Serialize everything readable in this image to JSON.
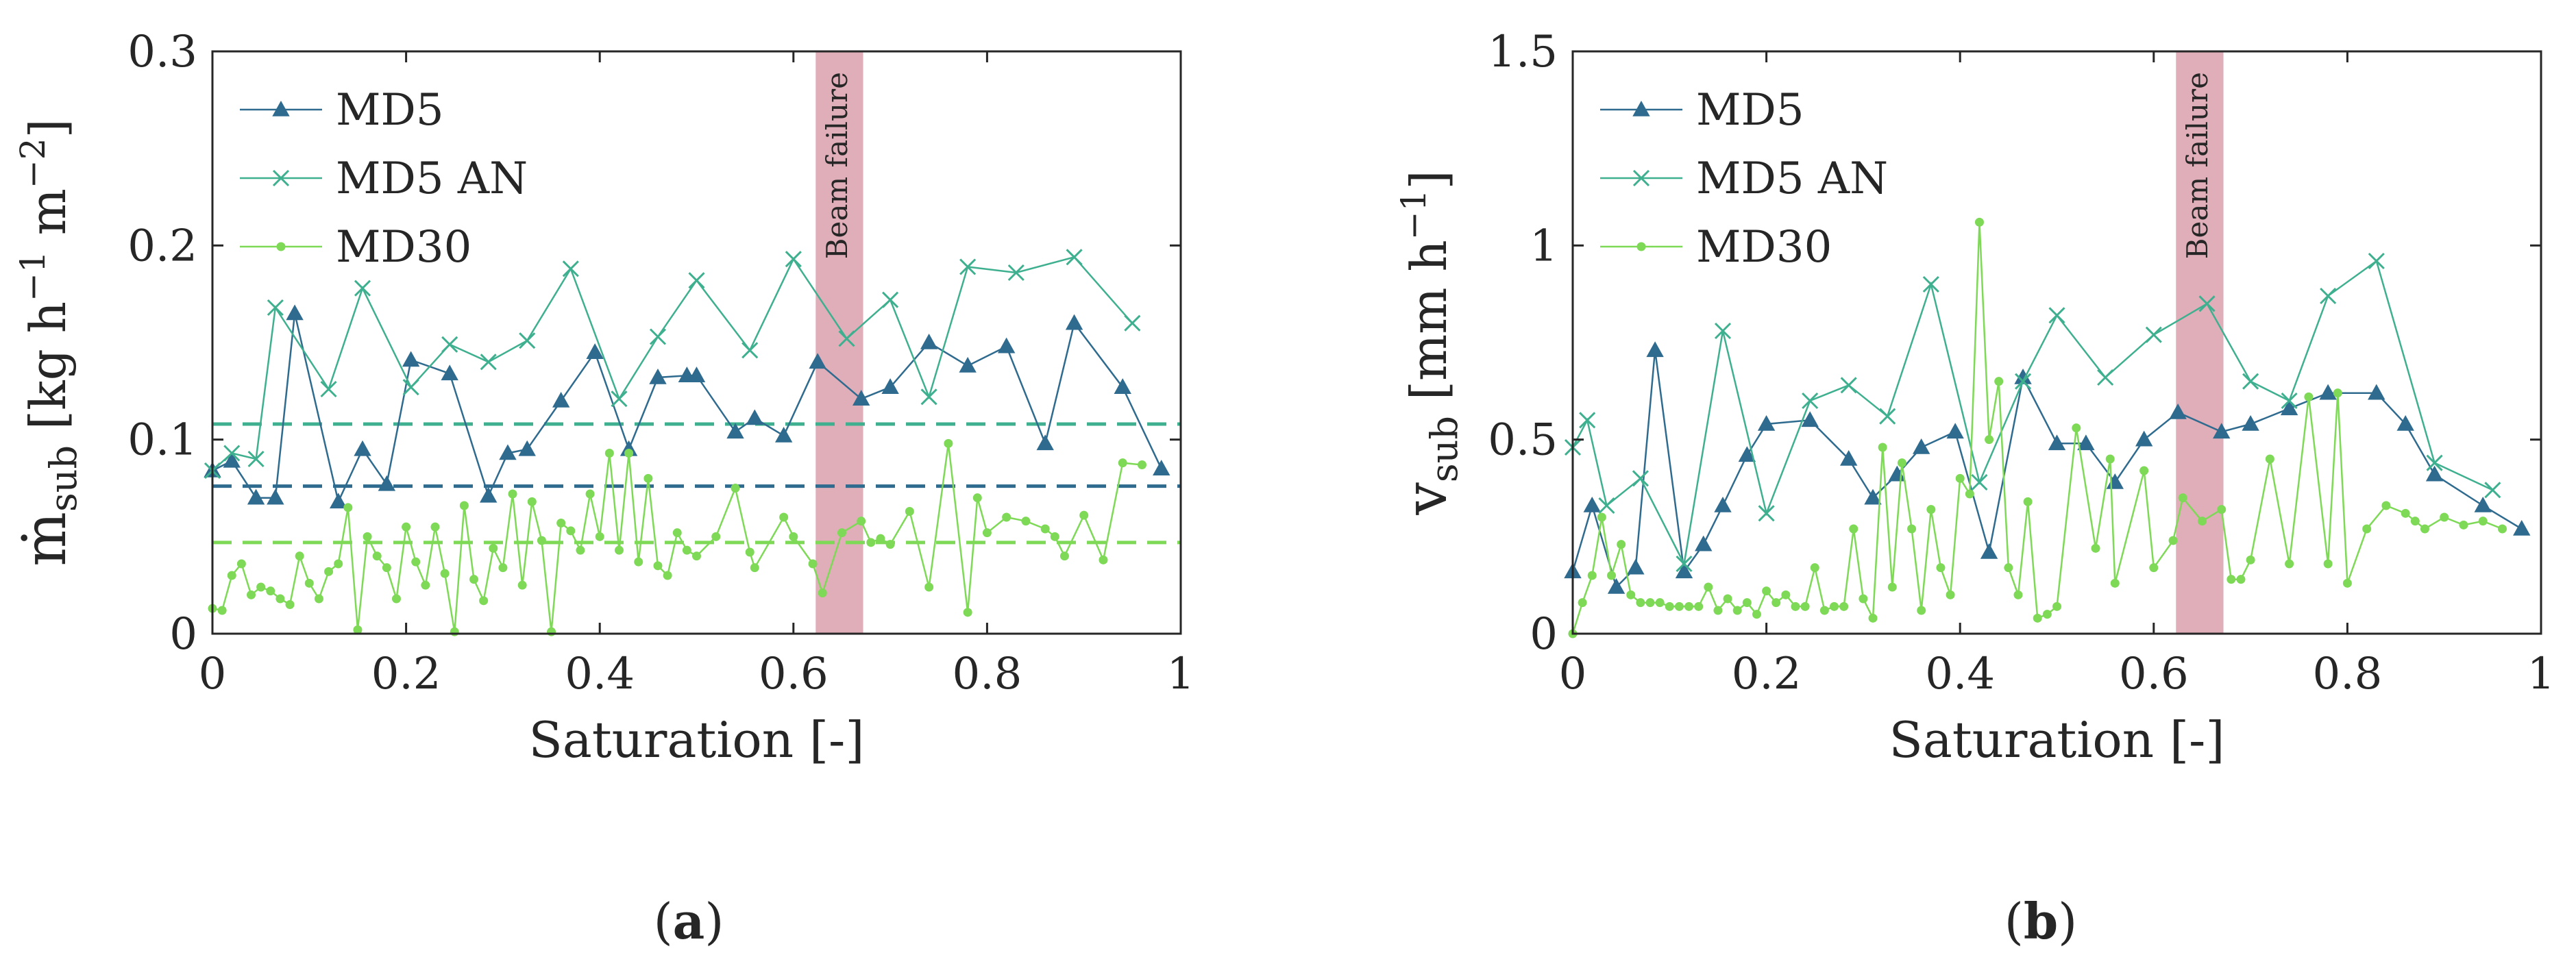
{
  "chart_data": [
    {
      "type": "line",
      "panel_label": "(a)",
      "xlabel": "Saturation [-]",
      "ylabel": "ṁsub [kg h−1 m−2]",
      "ylabel_parts": {
        "base": "ṁ",
        "sub": "sub",
        "unit_open": " [kg h",
        "exp1": "−1",
        "unit_mid": " m",
        "exp2": "−2",
        "unit_close": "]"
      },
      "xlim": [
        0,
        1
      ],
      "ylim": [
        0,
        0.3
      ],
      "xticks": [
        0,
        0.2,
        0.4,
        0.6,
        0.8,
        1
      ],
      "xtick_labels": [
        "0",
        "0.2",
        "0.4",
        "0.6",
        "0.8",
        "1"
      ],
      "yticks": [
        0,
        0.1,
        0.2,
        0.3
      ],
      "ytick_labels": [
        "0",
        "0.1",
        "0.2",
        "0.3"
      ],
      "legend_position": "top-left",
      "annotation": {
        "text": "Beam failure",
        "x_range": [
          0.623,
          0.672
        ]
      },
      "series": [
        {
          "name": "MD5",
          "marker": "triangle",
          "x": [
            0,
            0.02,
            0.045,
            0.065,
            0.085,
            0.13,
            0.155,
            0.18,
            0.205,
            0.245,
            0.285,
            0.305,
            0.325,
            0.36,
            0.395,
            0.43,
            0.46,
            0.49,
            0.5,
            0.54,
            0.56,
            0.59,
            0.625,
            0.67,
            0.7,
            0.74,
            0.78,
            0.82,
            0.86,
            0.89,
            0.94,
            0.98
          ],
          "y": [
            0.084,
            0.089,
            0.07,
            0.07,
            0.165,
            0.068,
            0.095,
            0.077,
            0.141,
            0.134,
            0.071,
            0.093,
            0.095,
            0.12,
            0.145,
            0.095,
            0.132,
            0.133,
            0.133,
            0.104,
            0.111,
            0.102,
            0.14,
            0.121,
            0.127,
            0.15,
            0.138,
            0.148,
            0.098,
            0.16,
            0.127,
            0.085
          ]
        },
        {
          "name": "MD5 AN",
          "marker": "x",
          "x": [
            0,
            0.02,
            0.045,
            0.065,
            0.12,
            0.155,
            0.205,
            0.245,
            0.285,
            0.325,
            0.37,
            0.42,
            0.46,
            0.5,
            0.555,
            0.6,
            0.655,
            0.7,
            0.74,
            0.78,
            0.83,
            0.89,
            0.95
          ],
          "y": [
            0.084,
            0.093,
            0.09,
            0.168,
            0.126,
            0.178,
            0.127,
            0.149,
            0.14,
            0.151,
            0.188,
            0.121,
            0.153,
            0.182,
            0.146,
            0.193,
            0.152,
            0.172,
            0.122,
            0.189,
            0.186,
            0.194,
            0.16
          ]
        },
        {
          "name": "MD30",
          "marker": "dot",
          "x": [
            0,
            0.01,
            0.02,
            0.03,
            0.04,
            0.05,
            0.06,
            0.07,
            0.08,
            0.09,
            0.1,
            0.11,
            0.12,
            0.13,
            0.14,
            0.15,
            0.16,
            0.17,
            0.18,
            0.19,
            0.2,
            0.21,
            0.22,
            0.23,
            0.24,
            0.25,
            0.26,
            0.27,
            0.28,
            0.29,
            0.3,
            0.31,
            0.32,
            0.33,
            0.34,
            0.35,
            0.36,
            0.37,
            0.38,
            0.39,
            0.4,
            0.41,
            0.42,
            0.43,
            0.44,
            0.45,
            0.46,
            0.47,
            0.48,
            0.49,
            0.5,
            0.52,
            0.54,
            0.555,
            0.56,
            0.59,
            0.6,
            0.62,
            0.63,
            0.65,
            0.67,
            0.68,
            0.69,
            0.7,
            0.72,
            0.74,
            0.76,
            0.78,
            0.79,
            0.8,
            0.82,
            0.84,
            0.86,
            0.87,
            0.88,
            0.9,
            0.92,
            0.94,
            0.96
          ],
          "y": [
            0.013,
            0.012,
            0.03,
            0.036,
            0.02,
            0.024,
            0.022,
            0.018,
            0.015,
            0.04,
            0.026,
            0.018,
            0.032,
            0.036,
            0.065,
            0.002,
            0.05,
            0.04,
            0.034,
            0.018,
            0.055,
            0.037,
            0.025,
            0.055,
            0.031,
            0.001,
            0.066,
            0.028,
            0.017,
            0.044,
            0.034,
            0.072,
            0.025,
            0.068,
            0.048,
            0.001,
            0.057,
            0.053,
            0.043,
            0.072,
            0.05,
            0.093,
            0.043,
            0.093,
            0.037,
            0.08,
            0.035,
            0.03,
            0.052,
            0.043,
            0.04,
            0.05,
            0.075,
            0.042,
            0.034,
            0.06,
            0.05,
            0.036,
            0.021,
            0.052,
            0.058,
            0.047,
            0.049,
            0.046,
            0.063,
            0.024,
            0.098,
            0.011,
            0.07,
            0.052,
            0.06,
            0.058,
            0.054,
            0.05,
            0.04,
            0.061,
            0.038,
            0.088,
            0.087
          ]
        }
      ],
      "reference_lines": [
        {
          "series": "MD5 AN",
          "y": 0.108
        },
        {
          "series": "MD5",
          "y": 0.076
        },
        {
          "series": "MD30",
          "y": 0.047
        }
      ]
    },
    {
      "type": "line",
      "panel_label": "(b)",
      "xlabel": "Saturation [-]",
      "ylabel": "vsub [mm h−1]",
      "ylabel_parts": {
        "base": "v",
        "sub": "sub",
        "unit_open": " [mm h",
        "exp1": "−1",
        "unit_mid": "",
        "exp2": "",
        "unit_close": "]"
      },
      "xlim": [
        0,
        1
      ],
      "ylim": [
        0,
        1.5
      ],
      "xticks": [
        0,
        0.2,
        0.4,
        0.6,
        0.8,
        1
      ],
      "xtick_labels": [
        "0",
        "0.2",
        "0.4",
        "0.6",
        "0.8",
        "1"
      ],
      "yticks": [
        0,
        0.5,
        1,
        1.5
      ],
      "ytick_labels": [
        "0",
        "0.5",
        "1",
        "1.5"
      ],
      "legend_position": "top-left",
      "annotation": {
        "text": "Beam failure",
        "x_range": [
          0.623,
          0.672
        ]
      },
      "series": [
        {
          "name": "MD5",
          "marker": "triangle",
          "x": [
            0,
            0.02,
            0.045,
            0.065,
            0.085,
            0.115,
            0.135,
            0.155,
            0.18,
            0.2,
            0.245,
            0.285,
            0.31,
            0.335,
            0.36,
            0.395,
            0.43,
            0.465,
            0.5,
            0.53,
            0.56,
            0.59,
            0.625,
            0.67,
            0.7,
            0.74,
            0.78,
            0.83,
            0.86,
            0.89,
            0.94,
            0.98
          ],
          "y": [
            0.16,
            0.33,
            0.12,
            0.17,
            0.73,
            0.16,
            0.23,
            0.33,
            0.46,
            0.54,
            0.55,
            0.45,
            0.35,
            0.41,
            0.48,
            0.52,
            0.21,
            0.66,
            0.49,
            0.49,
            0.39,
            0.5,
            0.57,
            0.52,
            0.54,
            0.58,
            0.62,
            0.62,
            0.54,
            0.41,
            0.33,
            0.27
          ]
        },
        {
          "name": "MD5 AN",
          "marker": "x",
          "x": [
            0,
            0.015,
            0.035,
            0.07,
            0.115,
            0.155,
            0.2,
            0.245,
            0.285,
            0.325,
            0.37,
            0.42,
            0.465,
            0.5,
            0.55,
            0.6,
            0.655,
            0.7,
            0.74,
            0.78,
            0.83,
            0.89,
            0.95
          ],
          "y": [
            0.48,
            0.55,
            0.33,
            0.4,
            0.18,
            0.78,
            0.31,
            0.6,
            0.64,
            0.56,
            0.9,
            0.39,
            0.65,
            0.82,
            0.66,
            0.77,
            0.85,
            0.65,
            0.6,
            0.87,
            0.96,
            0.44,
            0.37
          ]
        },
        {
          "name": "MD30",
          "marker": "dot",
          "x": [
            0,
            0.01,
            0.02,
            0.03,
            0.04,
            0.05,
            0.06,
            0.07,
            0.08,
            0.09,
            0.1,
            0.11,
            0.12,
            0.13,
            0.14,
            0.15,
            0.16,
            0.17,
            0.18,
            0.19,
            0.2,
            0.21,
            0.22,
            0.23,
            0.24,
            0.25,
            0.26,
            0.27,
            0.28,
            0.29,
            0.3,
            0.31,
            0.32,
            0.33,
            0.34,
            0.35,
            0.36,
            0.37,
            0.38,
            0.39,
            0.4,
            0.41,
            0.42,
            0.43,
            0.44,
            0.45,
            0.46,
            0.47,
            0.48,
            0.49,
            0.5,
            0.52,
            0.54,
            0.555,
            0.56,
            0.59,
            0.6,
            0.62,
            0.63,
            0.65,
            0.67,
            0.68,
            0.69,
            0.7,
            0.72,
            0.74,
            0.76,
            0.78,
            0.79,
            0.8,
            0.82,
            0.84,
            0.86,
            0.87,
            0.88,
            0.9,
            0.92,
            0.94,
            0.96
          ],
          "y": [
            0,
            0.08,
            0.15,
            0.3,
            0.15,
            0.23,
            0.1,
            0.08,
            0.08,
            0.08,
            0.07,
            0.07,
            0.07,
            0.07,
            0.12,
            0.06,
            0.09,
            0.06,
            0.08,
            0.05,
            0.11,
            0.08,
            0.1,
            0.07,
            0.07,
            0.17,
            0.06,
            0.07,
            0.07,
            0.27,
            0.09,
            0.04,
            0.48,
            0.12,
            0.44,
            0.27,
            0.06,
            0.32,
            0.17,
            0.1,
            0.4,
            0.36,
            1.06,
            0.5,
            0.65,
            0.17,
            0.1,
            0.34,
            0.04,
            0.05,
            0.07,
            0.53,
            0.22,
            0.45,
            0.13,
            0.42,
            0.17,
            0.24,
            0.35,
            0.29,
            0.32,
            0.14,
            0.14,
            0.19,
            0.45,
            0.18,
            0.61,
            0.18,
            0.62,
            0.13,
            0.27,
            0.33,
            0.31,
            0.29,
            0.27,
            0.3,
            0.28,
            0.29,
            0.27
          ]
        }
      ]
    }
  ],
  "colors": {
    "MD5": "#2f6b8f",
    "MD5 AN": "#3fb08f",
    "MD30": "#7ed957",
    "beam_failure_band": "#d9a0ad",
    "axis": "#262626"
  }
}
